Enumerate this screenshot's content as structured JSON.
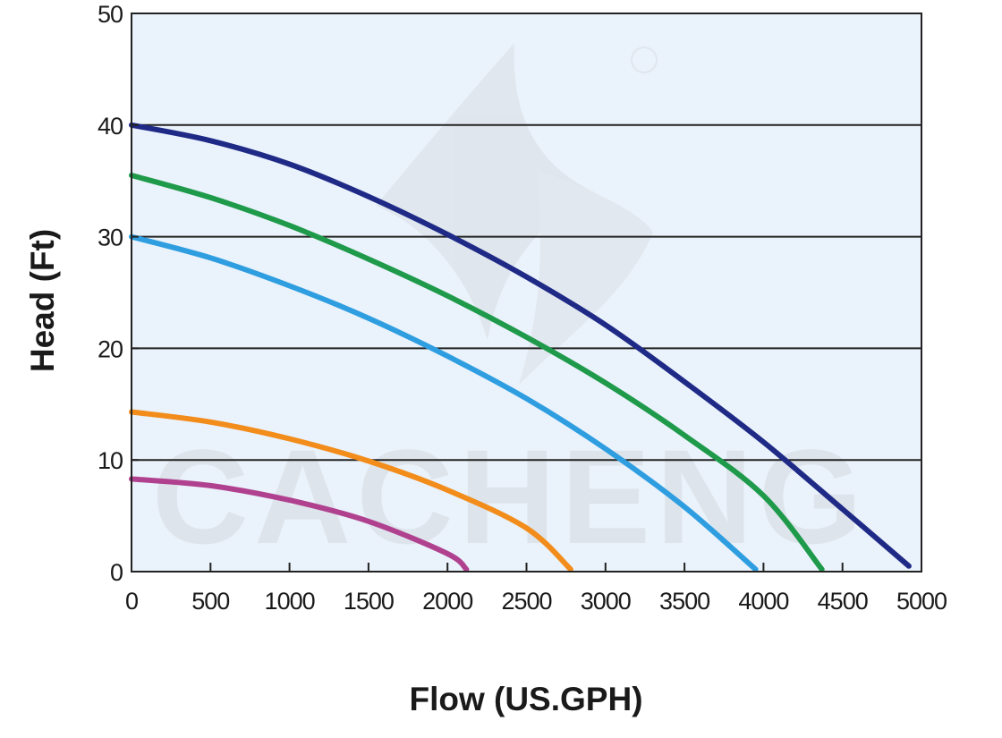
{
  "chart_data": {
    "type": "line",
    "title": "",
    "xlabel": "Flow (US.GPH)",
    "ylabel": "Head (Ft)",
    "xlim": [
      0,
      5000
    ],
    "ylim": [
      0,
      50
    ],
    "x_ticks": [
      0,
      500,
      1000,
      1500,
      2000,
      2500,
      3000,
      3500,
      4000,
      4500,
      5000
    ],
    "y_ticks": [
      0,
      10,
      20,
      30,
      40,
      50
    ],
    "grid": "horizontal",
    "legend": "none",
    "background_color": "#eaf2fb",
    "watermark": "CACHENG",
    "series": [
      {
        "color": "#1f2a86",
        "points": [
          [
            0,
            40
          ],
          [
            500,
            38.6
          ],
          [
            1000,
            36.5
          ],
          [
            1500,
            33.6
          ],
          [
            2000,
            30.2
          ],
          [
            2500,
            26.4
          ],
          [
            3000,
            22.1
          ],
          [
            3500,
            17
          ],
          [
            4000,
            11.6
          ],
          [
            4500,
            5.6
          ],
          [
            4920,
            0.5
          ]
        ]
      },
      {
        "color": "#1e9a4a",
        "points": [
          [
            0,
            35.5
          ],
          [
            500,
            33.5
          ],
          [
            1000,
            31
          ],
          [
            1500,
            28
          ],
          [
            2000,
            24.7
          ],
          [
            2500,
            21
          ],
          [
            3000,
            16.9
          ],
          [
            3500,
            12.2
          ],
          [
            4000,
            6.8
          ],
          [
            4370,
            0.2
          ]
        ]
      },
      {
        "color": "#2f9ee0",
        "points": [
          [
            0,
            30
          ],
          [
            500,
            28.1
          ],
          [
            1000,
            25.6
          ],
          [
            1500,
            22.7
          ],
          [
            2000,
            19.3
          ],
          [
            2500,
            15.5
          ],
          [
            3000,
            11
          ],
          [
            3500,
            5.8
          ],
          [
            3950,
            0.2
          ]
        ]
      },
      {
        "color": "#f28c1a",
        "points": [
          [
            0,
            14.3
          ],
          [
            500,
            13.4
          ],
          [
            1000,
            11.9
          ],
          [
            1500,
            9.9
          ],
          [
            2000,
            7.3
          ],
          [
            2500,
            3.9
          ],
          [
            2780,
            0.2
          ]
        ]
      },
      {
        "color": "#b0418f",
        "points": [
          [
            0,
            8.3
          ],
          [
            500,
            7.7
          ],
          [
            1000,
            6.4
          ],
          [
            1500,
            4.5
          ],
          [
            2000,
            1.6
          ],
          [
            2120,
            0.2
          ]
        ]
      }
    ]
  }
}
